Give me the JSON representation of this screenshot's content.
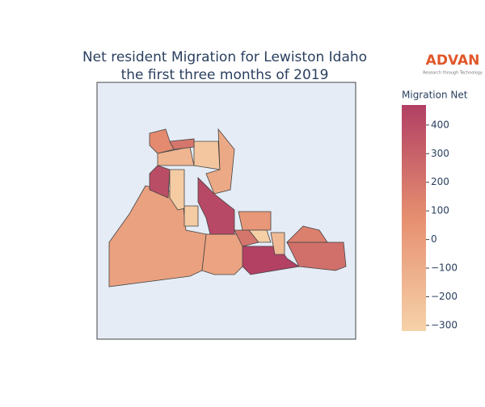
{
  "chart_data": {
    "type": "choropleth",
    "title": "Net resident Migration for Lewiston Idaho",
    "subtitle": "the first three months of 2019",
    "logo": {
      "name": "ADVAN",
      "tagline": "Research through Technology"
    },
    "colorbar_title": "Migration Net",
    "colorbar_range": [
      -320,
      470
    ],
    "colorscale": [
      [
        0,
        "#f6d2a9"
      ],
      [
        0.5,
        "#e68f70"
      ],
      [
        1,
        "#b13f64"
      ]
    ],
    "colorbar_ticks": [
      {
        "value": -300,
        "label": "−300"
      },
      {
        "value": -200,
        "label": "−200"
      },
      {
        "value": -100,
        "label": "−100"
      },
      0,
      100,
      200,
      300,
      400
    ],
    "values": [
      -30,
      -40,
      400,
      -280,
      420,
      100,
      -150,
      -250,
      -80,
      -280,
      20,
      200,
      460,
      230,
      150,
      -180,
      -300,
      200
    ]
  }
}
